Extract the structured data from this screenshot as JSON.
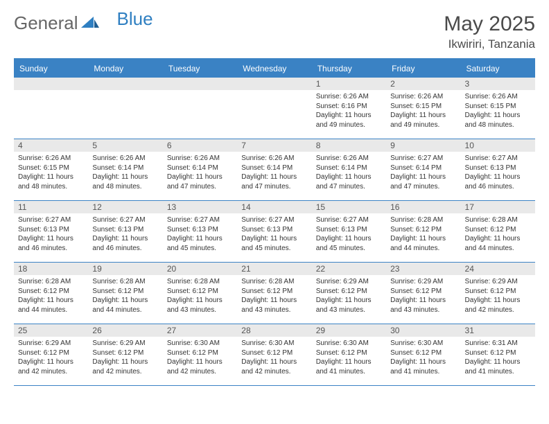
{
  "brand": {
    "general": "General",
    "blue": "Blue",
    "accent": "#2f7fc1"
  },
  "title": "May 2025",
  "location": "Ikwiriri, Tanzania",
  "colors": {
    "header_bg": "#3a82c4",
    "header_text": "#ffffff",
    "daynum_bg": "#e9e9e9",
    "body_text": "#333333",
    "rule": "#3a82c4"
  },
  "fonts": {
    "title_pt": 30,
    "location_pt": 17,
    "weekday_pt": 12,
    "daynum_pt": 12,
    "body_pt": 10
  },
  "weekdays": [
    "Sunday",
    "Monday",
    "Tuesday",
    "Wednesday",
    "Thursday",
    "Friday",
    "Saturday"
  ],
  "weeks": [
    [
      null,
      null,
      null,
      null,
      {
        "n": "1",
        "sunrise": "Sunrise: 6:26 AM",
        "sunset": "Sunset: 6:16 PM",
        "daylight": "Daylight: 11 hours and 49 minutes."
      },
      {
        "n": "2",
        "sunrise": "Sunrise: 6:26 AM",
        "sunset": "Sunset: 6:15 PM",
        "daylight": "Daylight: 11 hours and 49 minutes."
      },
      {
        "n": "3",
        "sunrise": "Sunrise: 6:26 AM",
        "sunset": "Sunset: 6:15 PM",
        "daylight": "Daylight: 11 hours and 48 minutes."
      }
    ],
    [
      {
        "n": "4",
        "sunrise": "Sunrise: 6:26 AM",
        "sunset": "Sunset: 6:15 PM",
        "daylight": "Daylight: 11 hours and 48 minutes."
      },
      {
        "n": "5",
        "sunrise": "Sunrise: 6:26 AM",
        "sunset": "Sunset: 6:14 PM",
        "daylight": "Daylight: 11 hours and 48 minutes."
      },
      {
        "n": "6",
        "sunrise": "Sunrise: 6:26 AM",
        "sunset": "Sunset: 6:14 PM",
        "daylight": "Daylight: 11 hours and 47 minutes."
      },
      {
        "n": "7",
        "sunrise": "Sunrise: 6:26 AM",
        "sunset": "Sunset: 6:14 PM",
        "daylight": "Daylight: 11 hours and 47 minutes."
      },
      {
        "n": "8",
        "sunrise": "Sunrise: 6:26 AM",
        "sunset": "Sunset: 6:14 PM",
        "daylight": "Daylight: 11 hours and 47 minutes."
      },
      {
        "n": "9",
        "sunrise": "Sunrise: 6:27 AM",
        "sunset": "Sunset: 6:14 PM",
        "daylight": "Daylight: 11 hours and 47 minutes."
      },
      {
        "n": "10",
        "sunrise": "Sunrise: 6:27 AM",
        "sunset": "Sunset: 6:13 PM",
        "daylight": "Daylight: 11 hours and 46 minutes."
      }
    ],
    [
      {
        "n": "11",
        "sunrise": "Sunrise: 6:27 AM",
        "sunset": "Sunset: 6:13 PM",
        "daylight": "Daylight: 11 hours and 46 minutes."
      },
      {
        "n": "12",
        "sunrise": "Sunrise: 6:27 AM",
        "sunset": "Sunset: 6:13 PM",
        "daylight": "Daylight: 11 hours and 46 minutes."
      },
      {
        "n": "13",
        "sunrise": "Sunrise: 6:27 AM",
        "sunset": "Sunset: 6:13 PM",
        "daylight": "Daylight: 11 hours and 45 minutes."
      },
      {
        "n": "14",
        "sunrise": "Sunrise: 6:27 AM",
        "sunset": "Sunset: 6:13 PM",
        "daylight": "Daylight: 11 hours and 45 minutes."
      },
      {
        "n": "15",
        "sunrise": "Sunrise: 6:27 AM",
        "sunset": "Sunset: 6:13 PM",
        "daylight": "Daylight: 11 hours and 45 minutes."
      },
      {
        "n": "16",
        "sunrise": "Sunrise: 6:28 AM",
        "sunset": "Sunset: 6:12 PM",
        "daylight": "Daylight: 11 hours and 44 minutes."
      },
      {
        "n": "17",
        "sunrise": "Sunrise: 6:28 AM",
        "sunset": "Sunset: 6:12 PM",
        "daylight": "Daylight: 11 hours and 44 minutes."
      }
    ],
    [
      {
        "n": "18",
        "sunrise": "Sunrise: 6:28 AM",
        "sunset": "Sunset: 6:12 PM",
        "daylight": "Daylight: 11 hours and 44 minutes."
      },
      {
        "n": "19",
        "sunrise": "Sunrise: 6:28 AM",
        "sunset": "Sunset: 6:12 PM",
        "daylight": "Daylight: 11 hours and 44 minutes."
      },
      {
        "n": "20",
        "sunrise": "Sunrise: 6:28 AM",
        "sunset": "Sunset: 6:12 PM",
        "daylight": "Daylight: 11 hours and 43 minutes."
      },
      {
        "n": "21",
        "sunrise": "Sunrise: 6:28 AM",
        "sunset": "Sunset: 6:12 PM",
        "daylight": "Daylight: 11 hours and 43 minutes."
      },
      {
        "n": "22",
        "sunrise": "Sunrise: 6:29 AM",
        "sunset": "Sunset: 6:12 PM",
        "daylight": "Daylight: 11 hours and 43 minutes."
      },
      {
        "n": "23",
        "sunrise": "Sunrise: 6:29 AM",
        "sunset": "Sunset: 6:12 PM",
        "daylight": "Daylight: 11 hours and 43 minutes."
      },
      {
        "n": "24",
        "sunrise": "Sunrise: 6:29 AM",
        "sunset": "Sunset: 6:12 PM",
        "daylight": "Daylight: 11 hours and 42 minutes."
      }
    ],
    [
      {
        "n": "25",
        "sunrise": "Sunrise: 6:29 AM",
        "sunset": "Sunset: 6:12 PM",
        "daylight": "Daylight: 11 hours and 42 minutes."
      },
      {
        "n": "26",
        "sunrise": "Sunrise: 6:29 AM",
        "sunset": "Sunset: 6:12 PM",
        "daylight": "Daylight: 11 hours and 42 minutes."
      },
      {
        "n": "27",
        "sunrise": "Sunrise: 6:30 AM",
        "sunset": "Sunset: 6:12 PM",
        "daylight": "Daylight: 11 hours and 42 minutes."
      },
      {
        "n": "28",
        "sunrise": "Sunrise: 6:30 AM",
        "sunset": "Sunset: 6:12 PM",
        "daylight": "Daylight: 11 hours and 42 minutes."
      },
      {
        "n": "29",
        "sunrise": "Sunrise: 6:30 AM",
        "sunset": "Sunset: 6:12 PM",
        "daylight": "Daylight: 11 hours and 41 minutes."
      },
      {
        "n": "30",
        "sunrise": "Sunrise: 6:30 AM",
        "sunset": "Sunset: 6:12 PM",
        "daylight": "Daylight: 11 hours and 41 minutes."
      },
      {
        "n": "31",
        "sunrise": "Sunrise: 6:31 AM",
        "sunset": "Sunset: 6:12 PM",
        "daylight": "Daylight: 11 hours and 41 minutes."
      }
    ]
  ]
}
